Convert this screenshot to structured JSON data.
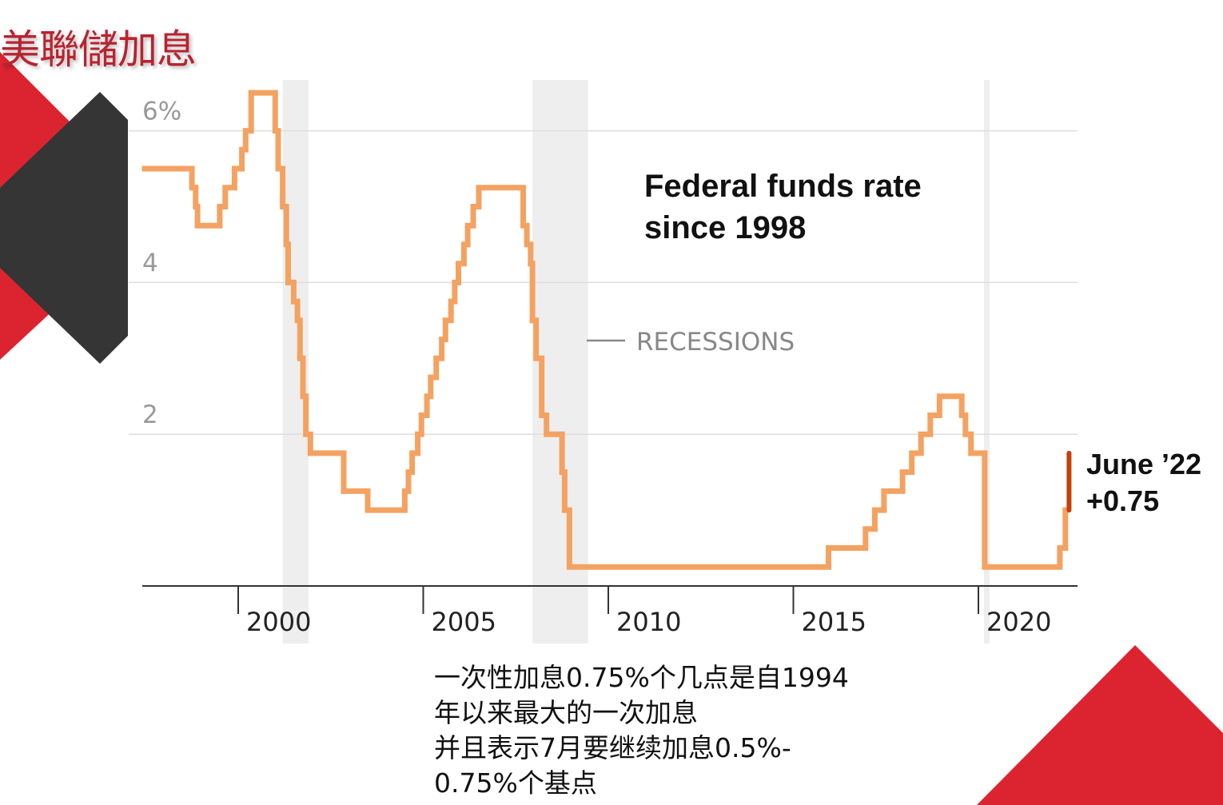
{
  "slide": {
    "title": "美聯儲加息",
    "caption_lines": [
      "一次性加息0.75%个几点是自1994",
      "年以来最大的一次加息",
      "并且表示7月要继续加息0.5%-",
      "0.75%个基点"
    ],
    "colors": {
      "accent_red": "#dc2430",
      "dark_gray": "#353535",
      "title_red": "#b8232f"
    }
  },
  "chart_data": {
    "type": "line",
    "title": "Federal funds rate since 1998",
    "title_lines": [
      "Federal funds rate",
      "since 1998"
    ],
    "xlabel": "",
    "ylabel": "",
    "x_ticks": [
      "2000",
      "2005",
      "2010",
      "2015",
      "2020"
    ],
    "y_ticks": [
      "6%",
      "4",
      "2"
    ],
    "xlim": [
      1997.5,
      2023.0
    ],
    "ylim": [
      0,
      6.5
    ],
    "grid": true,
    "legend": {
      "label": "RECESSIONS",
      "position": "center-right"
    },
    "recessions": [
      [
        2001.2,
        2001.9
      ],
      [
        2007.95,
        2009.45
      ],
      [
        2020.15,
        2020.3
      ]
    ],
    "series": [
      {
        "color": "#f4a261",
        "step": true,
        "points": [
          [
            1997.4,
            5.5
          ],
          [
            1998.75,
            5.25
          ],
          [
            1998.85,
            5.0
          ],
          [
            1998.9,
            4.75
          ],
          [
            1999.5,
            5.0
          ],
          [
            1999.65,
            5.25
          ],
          [
            1999.9,
            5.5
          ],
          [
            2000.1,
            5.75
          ],
          [
            2000.2,
            6.0
          ],
          [
            2000.35,
            6.5
          ],
          [
            2001.0,
            6.0
          ],
          [
            2001.08,
            5.5
          ],
          [
            2001.2,
            5.0
          ],
          [
            2001.3,
            4.5
          ],
          [
            2001.35,
            4.0
          ],
          [
            2001.5,
            3.75
          ],
          [
            2001.6,
            3.5
          ],
          [
            2001.67,
            3.0
          ],
          [
            2001.75,
            2.5
          ],
          [
            2001.83,
            2.0
          ],
          [
            2001.95,
            1.75
          ],
          [
            2002.85,
            1.25
          ],
          [
            2003.5,
            1.0
          ],
          [
            2004.5,
            1.25
          ],
          [
            2004.6,
            1.5
          ],
          [
            2004.7,
            1.75
          ],
          [
            2004.85,
            2.0
          ],
          [
            2004.95,
            2.25
          ],
          [
            2005.1,
            2.5
          ],
          [
            2005.2,
            2.75
          ],
          [
            2005.35,
            3.0
          ],
          [
            2005.5,
            3.25
          ],
          [
            2005.6,
            3.5
          ],
          [
            2005.75,
            3.75
          ],
          [
            2005.85,
            4.0
          ],
          [
            2005.95,
            4.25
          ],
          [
            2006.1,
            4.5
          ],
          [
            2006.2,
            4.75
          ],
          [
            2006.35,
            5.0
          ],
          [
            2006.5,
            5.25
          ],
          [
            2007.7,
            4.75
          ],
          [
            2007.8,
            4.5
          ],
          [
            2007.9,
            4.25
          ],
          [
            2007.95,
            3.5
          ],
          [
            2008.05,
            3.0
          ],
          [
            2008.2,
            2.25
          ],
          [
            2008.33,
            2.0
          ],
          [
            2008.75,
            1.5
          ],
          [
            2008.82,
            1.0
          ],
          [
            2008.95,
            0.25
          ],
          [
            2015.95,
            0.5
          ],
          [
            2016.95,
            0.75
          ],
          [
            2017.2,
            1.0
          ],
          [
            2017.45,
            1.25
          ],
          [
            2017.95,
            1.5
          ],
          [
            2018.2,
            1.75
          ],
          [
            2018.45,
            2.0
          ],
          [
            2018.7,
            2.25
          ],
          [
            2018.95,
            2.5
          ],
          [
            2019.55,
            2.25
          ],
          [
            2019.65,
            2.0
          ],
          [
            2019.8,
            1.75
          ],
          [
            2020.17,
            0.25
          ],
          [
            2022.2,
            0.5
          ],
          [
            2022.35,
            1.0
          ]
        ]
      },
      {
        "color": "#c2410c",
        "step": true,
        "points": [
          [
            2022.45,
            1.0
          ],
          [
            2022.45,
            1.75
          ]
        ]
      }
    ],
    "annotations": [
      {
        "text": "June ’22",
        "x": 2022.45,
        "y": 1.75
      },
      {
        "text": "+0.75",
        "x": 2022.45,
        "y": 1.0
      }
    ]
  }
}
